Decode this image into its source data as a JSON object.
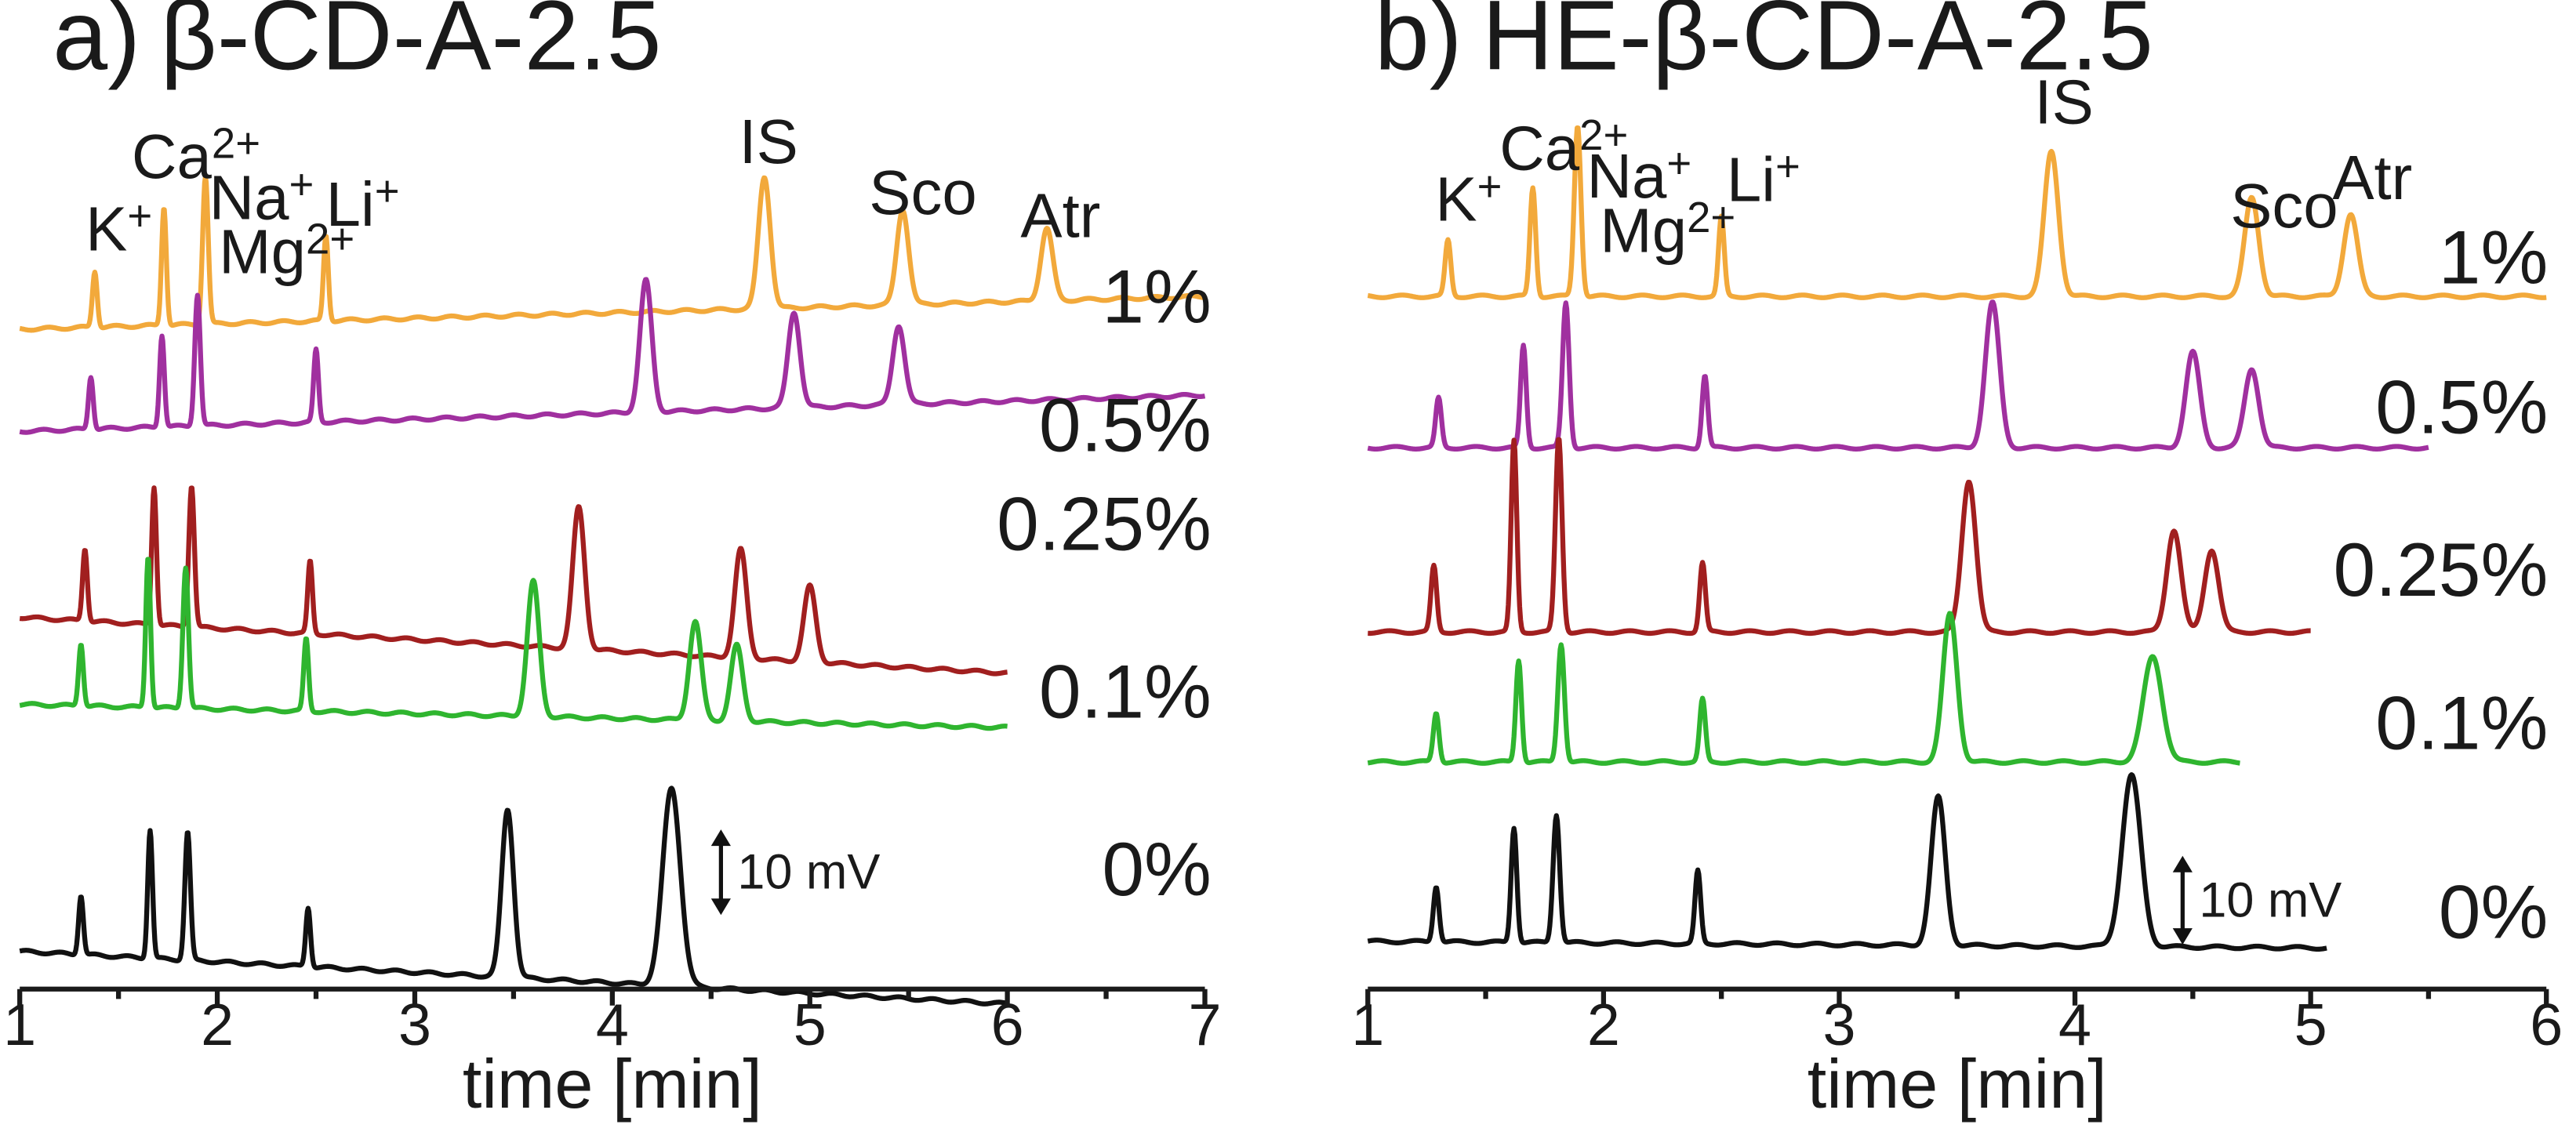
{
  "chart_data": [
    {
      "type": "line",
      "panel_label": "a)",
      "title": "β-CD-A-2.5",
      "xlabel": "time [min]",
      "ylabel": "",
      "xlim": [
        1,
        7
      ],
      "xticks": [
        "1",
        "2",
        "3",
        "4",
        "5",
        "6",
        "7"
      ],
      "scale_bar": {
        "label": "10 mV",
        "time": 4.45
      },
      "series": [
        {
          "name": "1%",
          "color": "#f2a93b",
          "offset": 200,
          "end": 7.0,
          "drift": -20,
          "peaks": [
            {
              "label": "K+",
              "t": 1.38,
              "h": 34,
              "w": 0.012
            },
            {
              "label": "Ca2+",
              "t": 1.73,
              "h": 72,
              "w": 0.012
            },
            {
              "label": "Na+ Mg2+",
              "t": 1.94,
              "h": 90,
              "w": 0.014
            },
            {
              "label": "Li+",
              "t": 2.55,
              "h": 52,
              "w": 0.012
            },
            {
              "label": "IS",
              "t": 4.77,
              "h": 80,
              "w": 0.03
            },
            {
              "label": "Sco",
              "t": 5.47,
              "h": 58,
              "w": 0.03
            },
            {
              "label": "Atr",
              "t": 6.2,
              "h": 44,
              "w": 0.03
            }
          ]
        },
        {
          "name": "0.5%",
          "color": "#a0309f",
          "offset": 262,
          "end": 7.0,
          "drift": -22,
          "peaks": [
            {
              "label": "K+",
              "t": 1.36,
              "h": 32,
              "w": 0.012
            },
            {
              "label": "Ca2+",
              "t": 1.72,
              "h": 56,
              "w": 0.012
            },
            {
              "label": "Na+ Mg2+",
              "t": 1.9,
              "h": 80,
              "w": 0.014
            },
            {
              "label": "Li+",
              "t": 2.5,
              "h": 44,
              "w": 0.012
            },
            {
              "label": "IS",
              "t": 4.17,
              "h": 80,
              "w": 0.03
            },
            {
              "label": "Sco",
              "t": 4.92,
              "h": 58,
              "w": 0.03
            },
            {
              "label": "Atr",
              "t": 5.45,
              "h": 48,
              "w": 0.03
            }
          ]
        },
        {
          "name": "0.25%",
          "color": "#a11f1f",
          "offset": 375,
          "end": 6.0,
          "drift": 34,
          "peaks": [
            {
              "label": "K+",
              "t": 1.33,
              "h": 44,
              "w": 0.012
            },
            {
              "label": "Ca2+",
              "t": 1.68,
              "h": 84,
              "w": 0.012
            },
            {
              "label": "Na+ Mg2+",
              "t": 1.87,
              "h": 86,
              "w": 0.014
            },
            {
              "label": "Li+",
              "t": 2.47,
              "h": 44,
              "w": 0.012
            },
            {
              "label": "IS",
              "t": 3.83,
              "h": 86,
              "w": 0.03
            },
            {
              "label": "Sco",
              "t": 4.65,
              "h": 66,
              "w": 0.03
            },
            {
              "label": "Atr",
              "t": 5.0,
              "h": 46,
              "w": 0.03
            }
          ]
        },
        {
          "name": "0.1%",
          "color": "#2fb52f",
          "offset": 428,
          "end": 6.0,
          "drift": 14,
          "peaks": [
            {
              "label": "K+",
              "t": 1.31,
              "h": 38,
              "w": 0.012
            },
            {
              "label": "Ca2+",
              "t": 1.65,
              "h": 92,
              "w": 0.012
            },
            {
              "label": "Na+ Mg2+",
              "t": 1.84,
              "h": 86,
              "w": 0.014
            },
            {
              "label": "Li+",
              "t": 2.45,
              "h": 44,
              "w": 0.012
            },
            {
              "label": "IS",
              "t": 3.6,
              "h": 82,
              "w": 0.03
            },
            {
              "label": "Sco",
              "t": 4.42,
              "h": 60,
              "w": 0.03
            },
            {
              "label": "Atr",
              "t": 4.63,
              "h": 46,
              "w": 0.03
            }
          ]
        },
        {
          "name": "0%",
          "color": "#111111",
          "offset": 578,
          "end": 6.0,
          "drift": 32,
          "peaks": [
            {
              "label": "K+",
              "t": 1.31,
              "h": 36,
              "w": 0.012
            },
            {
              "label": "Ca2+",
              "t": 1.66,
              "h": 78,
              "w": 0.012
            },
            {
              "label": "Na+ Mg2+",
              "t": 1.85,
              "h": 78,
              "w": 0.014
            },
            {
              "label": "Li+",
              "t": 2.46,
              "h": 36,
              "w": 0.012
            },
            {
              "label": "IS",
              "t": 3.47,
              "h": 102,
              "w": 0.03
            },
            {
              "label": "Sco+Atr",
              "t": 4.3,
              "h": 120,
              "w": 0.045
            }
          ]
        }
      ],
      "peak_labels": [
        "K⁺",
        "Ca²⁺",
        "Na⁺",
        "Mg²⁺",
        "Li⁺",
        "IS",
        "Sco",
        "Atr"
      ]
    },
    {
      "type": "line",
      "panel_label": "b)",
      "title": "HE-β-CD-A-2.5",
      "xlabel": "time [min]",
      "ylabel": "",
      "xlim": [
        1,
        6
      ],
      "xticks": [
        "1",
        "2",
        "3",
        "4",
        "5",
        "6"
      ],
      "scale_bar": {
        "label": "10 mV",
        "time": 4.45
      },
      "series": [
        {
          "name": "1%",
          "color": "#f2a93b",
          "offset": 180,
          "end": 6.0,
          "drift": 0,
          "peaks": [
            {
              "label": "K+",
              "t": 1.34,
              "h": 34,
              "w": 0.012
            },
            {
              "label": "Ca2+",
              "t": 1.7,
              "h": 66,
              "w": 0.012
            },
            {
              "label": "Na+ Mg2+",
              "t": 1.89,
              "h": 104,
              "w": 0.014
            },
            {
              "label": "Li+",
              "t": 2.5,
              "h": 48,
              "w": 0.012
            },
            {
              "label": "IS",
              "t": 3.9,
              "h": 88,
              "w": 0.03
            },
            {
              "label": "Sco",
              "t": 4.75,
              "h": 60,
              "w": 0.03
            },
            {
              "label": "Atr",
              "t": 5.17,
              "h": 50,
              "w": 0.03
            }
          ]
        },
        {
          "name": "0.5%",
          "color": "#a0309f",
          "offset": 272,
          "end": 5.5,
          "drift": 0,
          "peaks": [
            {
              "label": "K+",
              "t": 1.3,
              "h": 30,
              "w": 0.012
            },
            {
              "label": "Ca2+",
              "t": 1.66,
              "h": 62,
              "w": 0.012
            },
            {
              "label": "Na+ Mg2+",
              "t": 1.84,
              "h": 88,
              "w": 0.014
            },
            {
              "label": "Li+",
              "t": 2.43,
              "h": 44,
              "w": 0.012
            },
            {
              "label": "IS",
              "t": 3.65,
              "h": 88,
              "w": 0.03
            },
            {
              "label": "Sco",
              "t": 4.5,
              "h": 58,
              "w": 0.03
            },
            {
              "label": "Atr",
              "t": 4.75,
              "h": 48,
              "w": 0.03
            }
          ]
        },
        {
          "name": "0.25%",
          "color": "#a11f1f",
          "offset": 384,
          "end": 5.0,
          "drift": 0,
          "peaks": [
            {
              "label": "K+",
              "t": 1.28,
              "h": 40,
              "w": 0.012
            },
            {
              "label": "Ca2+",
              "t": 1.62,
              "h": 116,
              "w": 0.012
            },
            {
              "label": "Na+ Mg2+",
              "t": 1.81,
              "h": 118,
              "w": 0.014
            },
            {
              "label": "Li+",
              "t": 2.42,
              "h": 42,
              "w": 0.012
            },
            {
              "label": "IS",
              "t": 3.55,
              "h": 92,
              "w": 0.03
            },
            {
              "label": "Sco",
              "t": 4.42,
              "h": 62,
              "w": 0.03
            },
            {
              "label": "Atr",
              "t": 4.58,
              "h": 50,
              "w": 0.03
            }
          ]
        },
        {
          "name": "0.1%",
          "color": "#2fb52f",
          "offset": 463,
          "end": 4.7,
          "drift": 0,
          "peaks": [
            {
              "label": "K+",
              "t": 1.29,
              "h": 30,
              "w": 0.012
            },
            {
              "label": "Ca2+",
              "t": 1.64,
              "h": 62,
              "w": 0.012
            },
            {
              "label": "Na+ Mg2+",
              "t": 1.82,
              "h": 72,
              "w": 0.014
            },
            {
              "label": "Li+",
              "t": 2.42,
              "h": 38,
              "w": 0.012
            },
            {
              "label": "IS",
              "t": 3.47,
              "h": 90,
              "w": 0.03
            },
            {
              "label": "Sco+Atr",
              "t": 4.33,
              "h": 64,
              "w": 0.04
            }
          ]
        },
        {
          "name": "0%",
          "color": "#111111",
          "offset": 572,
          "end": 5.07,
          "drift": 4,
          "peaks": [
            {
              "label": "K+",
              "t": 1.29,
              "h": 34,
              "w": 0.012
            },
            {
              "label": "Ca2+",
              "t": 1.62,
              "h": 70,
              "w": 0.012
            },
            {
              "label": "Na+ Mg2+",
              "t": 1.8,
              "h": 78,
              "w": 0.014
            },
            {
              "label": "Li+",
              "t": 2.4,
              "h": 44,
              "w": 0.012
            },
            {
              "label": "IS",
              "t": 3.42,
              "h": 90,
              "w": 0.03
            },
            {
              "label": "Sco+Atr",
              "t": 4.24,
              "h": 104,
              "w": 0.04
            }
          ]
        }
      ],
      "peak_labels": [
        "K⁺",
        "Ca²⁺",
        "Na⁺",
        "Mg²⁺",
        "Li⁺",
        "IS",
        "Sco",
        "Atr"
      ]
    }
  ]
}
